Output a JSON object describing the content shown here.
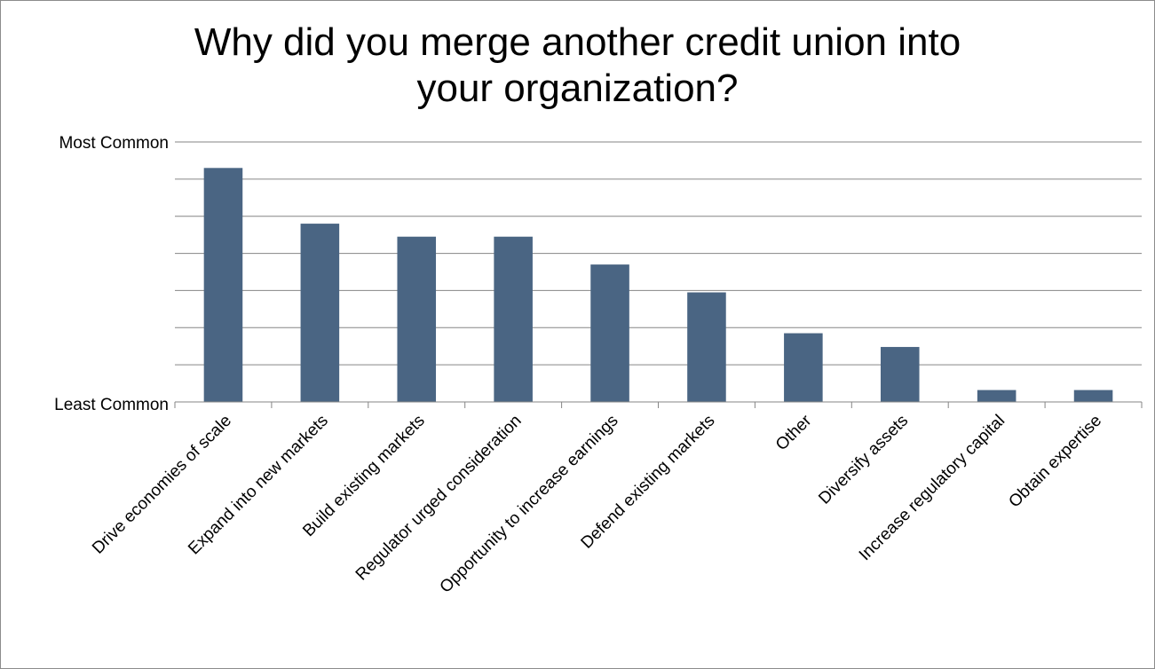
{
  "chart_data": {
    "type": "bar",
    "title_line1": "Why did you merge another credit union into",
    "title_line2": "your organization?",
    "xlabel": "",
    "ylabel": "",
    "ytick_labels": {
      "top": "Most Common",
      "bottom": "Least Common"
    },
    "categories": [
      "Drive economies of scale",
      "Expand into new markets",
      "Build existing markets",
      "Regulator urged consideration",
      "Opportunity to increase earnings",
      "Defend existing markets",
      "Other",
      "Diversify assets",
      "Increase regulatory capital",
      "Obtain expertise"
    ],
    "values": [
      6.3,
      4.8,
      4.45,
      4.45,
      3.7,
      2.95,
      1.85,
      1.48,
      0.32,
      0.32
    ],
    "ylim": [
      0,
      7
    ],
    "gridlines": 7,
    "grid": true,
    "legend": "none",
    "bar_color": "#4a6583",
    "grid_color": "#868686"
  }
}
